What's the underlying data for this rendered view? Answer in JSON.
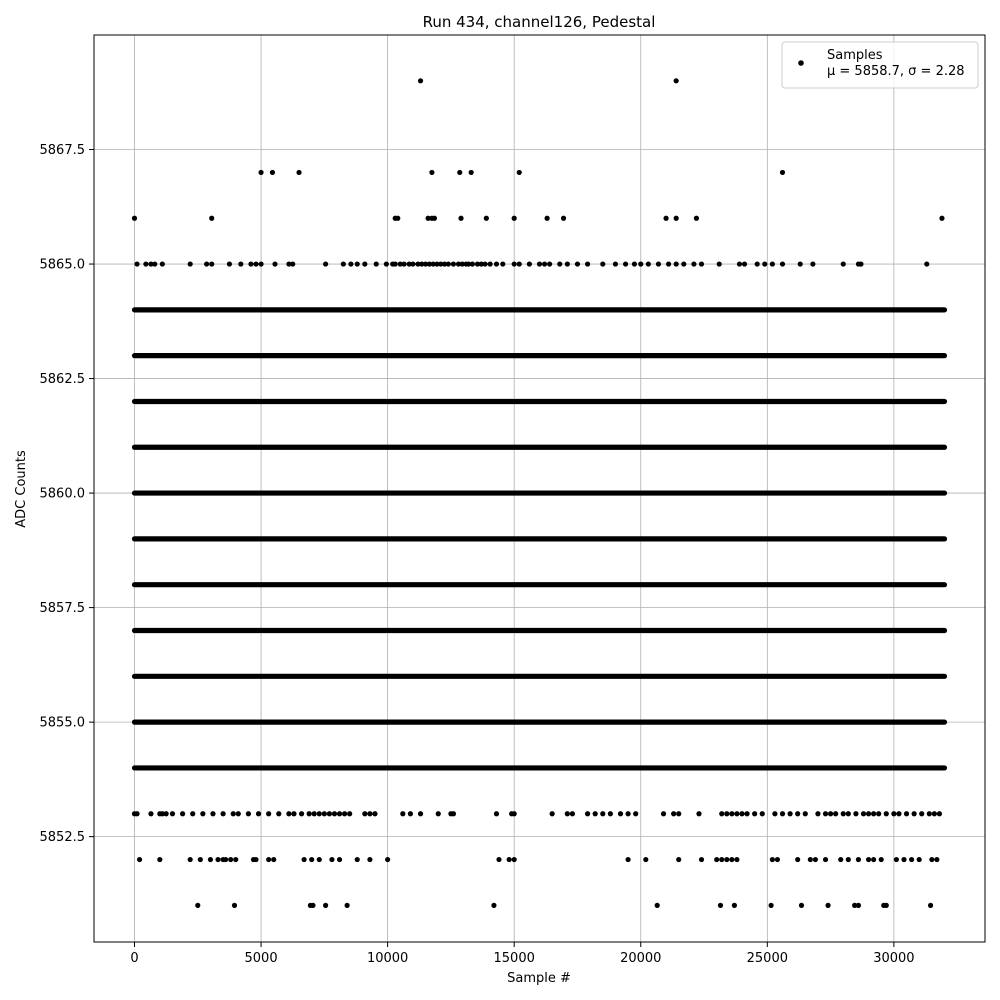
{
  "chart_data": {
    "type": "scatter",
    "title": "Run 434, channel126, Pedestal",
    "xlabel": "Sample #",
    "ylabel": "ADC Counts",
    "xlim": [
      -1600,
      33600
    ],
    "ylim": [
      5850.2,
      5870.0
    ],
    "xticks": [
      0,
      5000,
      10000,
      15000,
      20000,
      25000,
      30000
    ],
    "xtick_labels": [
      "0",
      "5000",
      "10000",
      "15000",
      "20000",
      "25000",
      "30000"
    ],
    "yticks": [
      5852.5,
      5855.0,
      5857.5,
      5860.0,
      5862.5,
      5865.0,
      5867.5
    ],
    "ytick_labels": [
      "5852.5",
      "5855.0",
      "5857.5",
      "5860.0",
      "5862.5",
      "5865.0",
      "5867.5"
    ],
    "grid": true,
    "legend": {
      "position": "upper-right",
      "series_name": "Samples",
      "stats_text": "μ = 5858.7, σ = 2.28"
    },
    "series": [
      {
        "name": "Samples",
        "color": "#000000",
        "sample_range": [
          0,
          32000
        ],
        "levels": [
          5851,
          5852,
          5853,
          5854,
          5855,
          5856,
          5857,
          5858,
          5859,
          5860,
          5861,
          5862,
          5863,
          5864,
          5865,
          5866,
          5867,
          5869
        ],
        "dense_levels": [
          5854,
          5855,
          5856,
          5857,
          5858,
          5859,
          5860,
          5861,
          5862,
          5863,
          5864
        ],
        "sparse_points": [
          {
            "level": 5869,
            "x": [
              11300,
              21400
            ]
          },
          {
            "level": 5867,
            "x": [
              5000,
              5450,
              6500,
              11750,
              12850,
              13300,
              15200,
              25600
            ]
          },
          {
            "level": 5866,
            "x": [
              0,
              3050,
              10300,
              10400,
              11600,
              11750,
              11850,
              12900,
              13900,
              15000,
              16300,
              16950,
              21000,
              21400,
              22200,
              31900
            ]
          },
          {
            "level": 5865,
            "x": [
              100,
              450,
              650,
              800,
              1100,
              2200,
              2850,
              3050,
              3750,
              4200,
              4600,
              4800,
              5000,
              5550,
              6100,
              6250,
              7550,
              8250,
              8550,
              8800,
              9100,
              9550,
              9950,
              10200,
              10300,
              10500,
              10650,
              10850,
              11000,
              11200,
              11350,
              11500,
              11650,
              11800,
              11950,
              12100,
              12250,
              12400,
              12600,
              12800,
              12950,
              13100,
              13200,
              13350,
              13550,
              13700,
              13850,
              14050,
              14300,
              14550,
              15000,
              15200,
              15600,
              16000,
              16200,
              16400,
              16800,
              17100,
              17500,
              17900,
              18500,
              19000,
              19400,
              19750,
              20000,
              20300,
              20700,
              21100,
              21400,
              21700,
              22100,
              22400,
              23100,
              23900,
              24100,
              24600,
              24900,
              25200,
              25600,
              26300,
              26800,
              28000,
              28600,
              28700,
              31300
            ]
          },
          {
            "level": 5853,
            "x": [
              0,
              100,
              650,
              1000,
              1100,
              1250,
              1500,
              1900,
              2300,
              2700,
              3100,
              3500,
              3900,
              4100,
              4500,
              4900,
              5300,
              5700,
              6100,
              6300,
              6600,
              6900,
              7100,
              7300,
              7500,
              7700,
              7900,
              8100,
              8300,
              8500,
              9100,
              9300,
              9500,
              10600,
              10900,
              11300,
              12000,
              12500,
              12600,
              14300,
              14900,
              15000,
              16500,
              17100,
              17300,
              17900,
              18200,
              18500,
              18800,
              19200,
              19500,
              19800,
              20900,
              21300,
              21500,
              22300,
              23200,
              23400,
              23600,
              23800,
              24000,
              24200,
              24500,
              24800,
              25300,
              25600,
              25900,
              26200,
              26500,
              27000,
              27300,
              27500,
              27700,
              28000,
              28200,
              28500,
              28800,
              29000,
              29200,
              29400,
              29700,
              30000,
              30200,
              30500,
              30800,
              31100,
              31400,
              31600,
              31800
            ]
          },
          {
            "level": 5852,
            "x": [
              200,
              1000,
              2200,
              2600,
              3000,
              3300,
              3500,
              3600,
              3800,
              4000,
              4700,
              4800,
              5300,
              5500,
              6700,
              7000,
              7300,
              7800,
              8100,
              8800,
              9300,
              10000,
              14400,
              14800,
              15000,
              19500,
              20200,
              21500,
              22400,
              23000,
              23200,
              23400,
              23600,
              23800,
              25200,
              25400,
              26200,
              26700,
              26900,
              27300,
              27900,
              28200,
              28600,
              29000,
              29200,
              29500,
              30100,
              30400,
              30700,
              31000,
              31500,
              31700
            ]
          },
          {
            "level": 5851,
            "x": [
              2500,
              3950,
              6950,
              7050,
              7550,
              8400,
              14200,
              20650,
              23150,
              23700,
              25150,
              26350,
              27400,
              28450,
              28600,
              29600,
              29700,
              31450
            ]
          }
        ]
      }
    ]
  }
}
